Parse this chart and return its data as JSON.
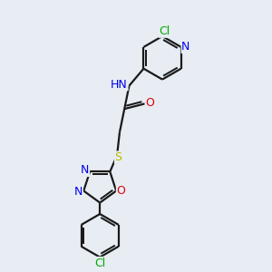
{
  "background_color": "#e8edf4",
  "bond_color": "#1a1a1a",
  "bond_width": 1.6,
  "atom_colors": {
    "C": "#1a1a1a",
    "N": "#0000ee",
    "O": "#dd0000",
    "S": "#bbbb00",
    "Cl": "#00aa00",
    "H": "#1a1a1a"
  },
  "font_size": 9.0,
  "fig_size": [
    3.0,
    3.0
  ],
  "dpi": 100,
  "xlim": [
    0,
    10
  ],
  "ylim": [
    0,
    10
  ]
}
